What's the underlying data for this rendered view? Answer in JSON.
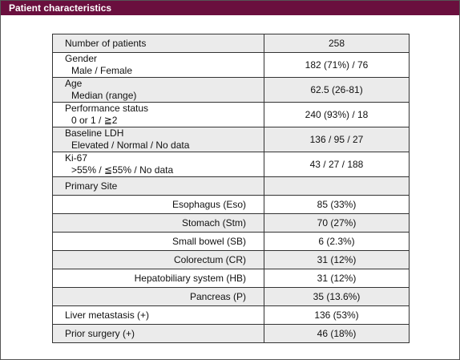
{
  "header": {
    "title": "Patient characteristics"
  },
  "table": {
    "rows": [
      {
        "label": "Number of patients",
        "value": "258"
      },
      {
        "label": "Gender",
        "sublabel": "Male / Female",
        "value": "182 (71%) / 76"
      },
      {
        "label": "Age",
        "sublabel": "Median (range)",
        "value": "62.5 (26-81)"
      },
      {
        "label": "Performance status",
        "sublabel": "0 or 1 / ≧2",
        "value": "240 (93%) / 18"
      },
      {
        "label": "Baseline LDH",
        "sublabel": "Elevated / Normal / No data",
        "value": "136 / 95 / 27"
      },
      {
        "label": "Ki-67",
        "sublabel": ">55% / ≦55% / No data",
        "value": "43 / 27 / 188"
      },
      {
        "label": "Primary Site"
      },
      {
        "site": "Esophagus (Eso)",
        "value": "85 (33%)"
      },
      {
        "site": "Stomach (Stm)",
        "value": "70 (27%)"
      },
      {
        "site": "Small bowel (SB)",
        "value": "6 (2.3%)"
      },
      {
        "site": "Colorectum (CR)",
        "value": "31 (12%)"
      },
      {
        "site": "Hepatobiliary system (HB)",
        "value": "31 (12%)"
      },
      {
        "site": "Pancreas (P)",
        "value": "35 (13.6%)"
      },
      {
        "label": "Liver metastasis (+)",
        "value": "136 (53%)"
      },
      {
        "label": "Prior surgery (+)",
        "value": "46 (18%)"
      }
    ]
  }
}
